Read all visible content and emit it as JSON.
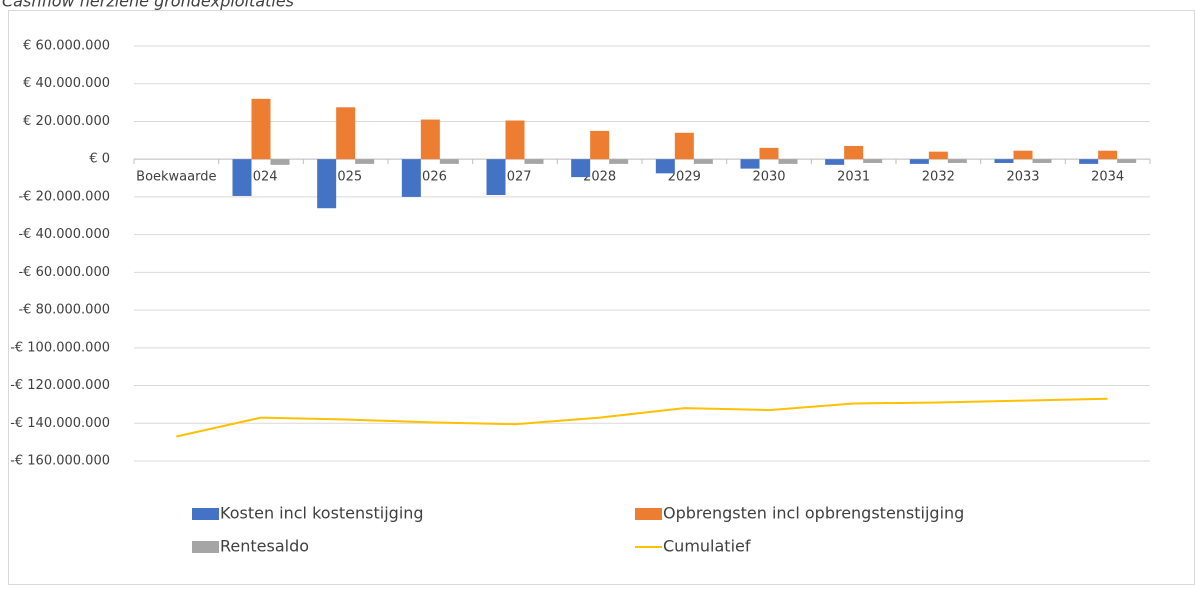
{
  "chart_data": {
    "type": "bar",
    "title": "Cashflow herziene grondexploitaties",
    "categories": [
      "Boekwaarde",
      "2024",
      "2025",
      "2026",
      "2027",
      "2028",
      "2029",
      "2030",
      "2031",
      "2032",
      "2033",
      "2034"
    ],
    "series": [
      {
        "name": "Kosten incl kostenstijging",
        "type": "bar",
        "color": "#4472c4",
        "values": [
          null,
          -19500000,
          -26000000,
          -20000000,
          -19000000,
          -9500000,
          -7500000,
          -5000000,
          -3000000,
          -2500000,
          -2000000,
          -2500000
        ]
      },
      {
        "name": "Opbrengsten incl opbrengstenstijging",
        "type": "bar",
        "color": "#ed7d31",
        "values": [
          null,
          32000000,
          27500000,
          21000000,
          20500000,
          15000000,
          14000000,
          6000000,
          7000000,
          4000000,
          4500000,
          4500000
        ]
      },
      {
        "name": "Rentesaldo",
        "type": "bar",
        "color": "#a5a5a5",
        "values": [
          null,
          -3000000,
          -2500000,
          -2500000,
          -2500000,
          -2500000,
          -2500000,
          -2500000,
          -2000000,
          -2000000,
          -2000000,
          -2000000
        ]
      },
      {
        "name": "Cumulatief",
        "type": "line",
        "color": "#ffc000",
        "values": [
          -147000000,
          -137000000,
          -138000000,
          -139500000,
          -140500000,
          -137000000,
          -132000000,
          -133000000,
          -129500000,
          -129000000,
          -128000000,
          -127000000
        ]
      }
    ],
    "ylim": [
      -160000000,
      60000000
    ],
    "yticks": [
      {
        "value": 60000000,
        "label": "€ 60.000.000"
      },
      {
        "value": 40000000,
        "label": "€ 40.000.000"
      },
      {
        "value": 20000000,
        "label": "€ 20.000.000"
      },
      {
        "value": 0,
        "label": "€ 0"
      },
      {
        "value": -20000000,
        "label": "-€ 20.000.000"
      },
      {
        "value": -40000000,
        "label": "-€ 40.000.000"
      },
      {
        "value": -60000000,
        "label": "-€ 60.000.000"
      },
      {
        "value": -80000000,
        "label": "-€ 80.000.000"
      },
      {
        "value": -100000000,
        "label": "-€ 100.000.000"
      },
      {
        "value": -120000000,
        "label": "-€ 120.000.000"
      },
      {
        "value": -140000000,
        "label": "-€ 140.000.000"
      },
      {
        "value": -160000000,
        "label": "-€ 160.000.000"
      }
    ],
    "grid": true
  }
}
